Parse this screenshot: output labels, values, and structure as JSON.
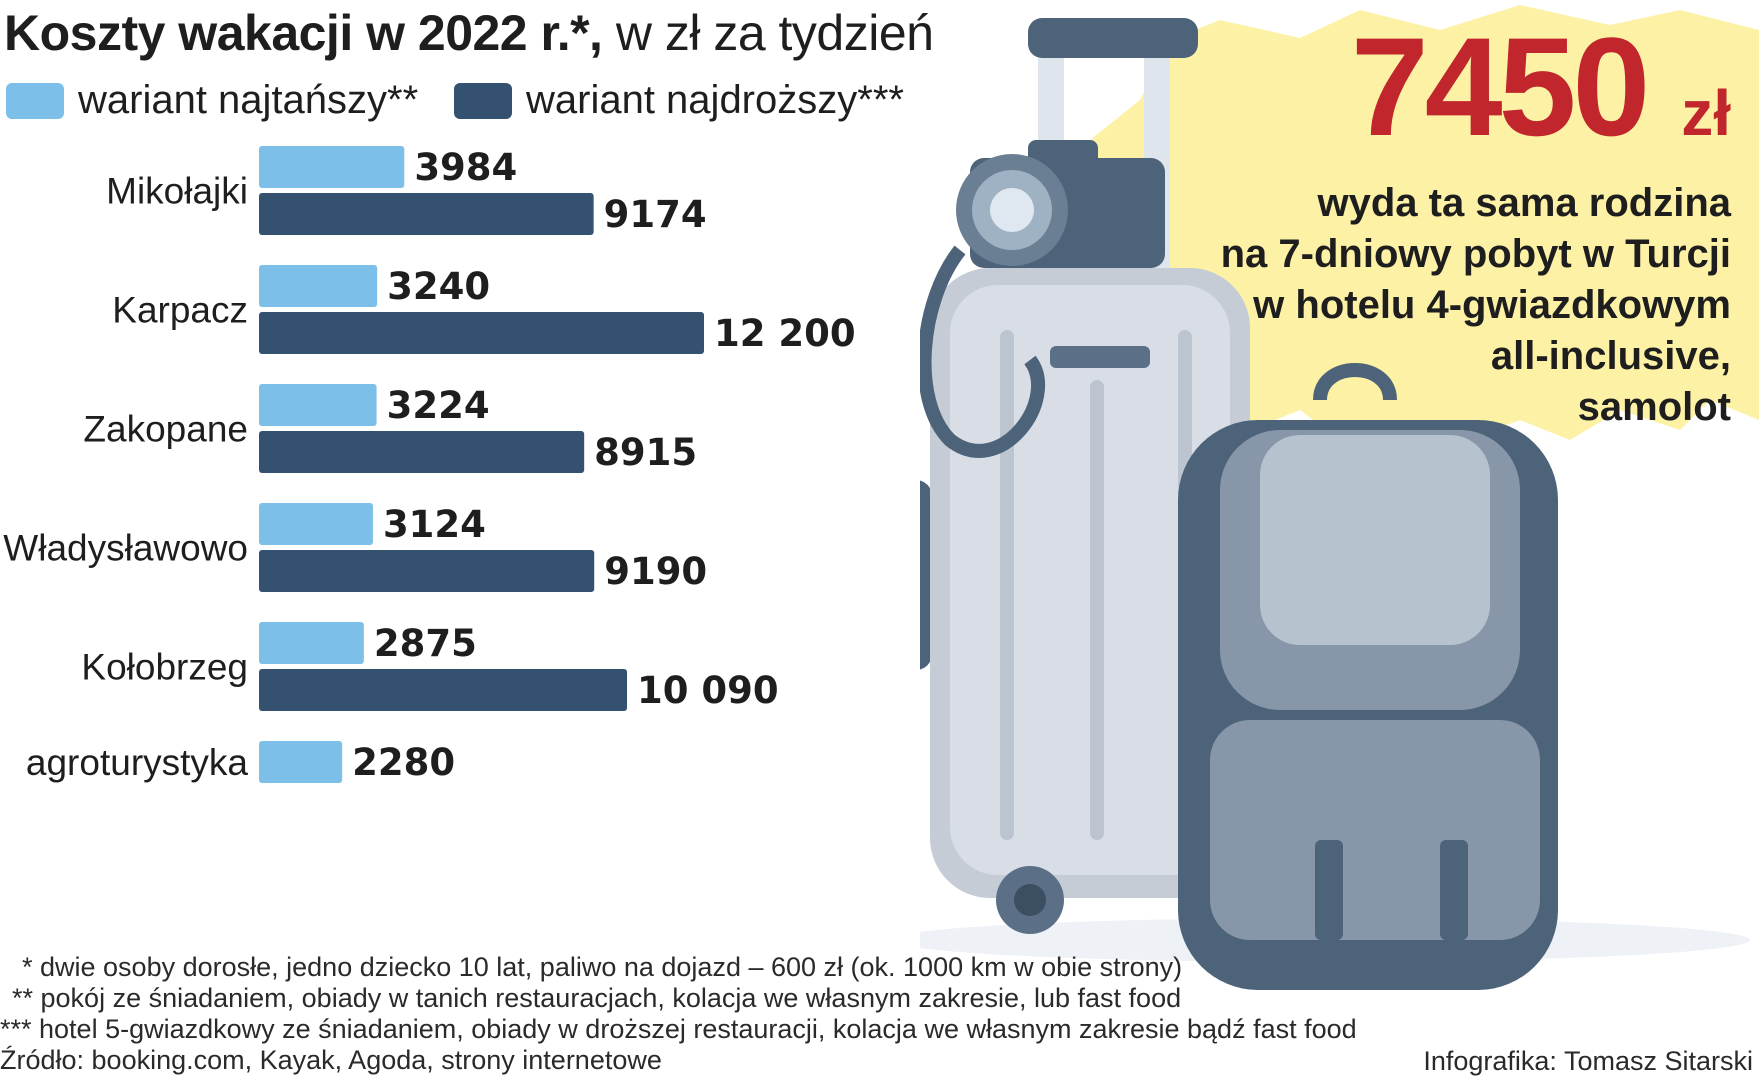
{
  "title": {
    "bold": "Koszty wakacji w 2022 r.*,",
    "rest": " w zł za tydzień"
  },
  "colors": {
    "cheap": "#7cc0ea",
    "expensive": "#34526f",
    "highlight": "#fdf1a6",
    "accent": "#c0262b"
  },
  "chart_data": {
    "type": "bar",
    "orientation": "horizontal",
    "categories": [
      "Mikołajki",
      "Karpacz",
      "Zakopane",
      "Władysławowo",
      "Kołobrzeg",
      "agroturystyka"
    ],
    "series": [
      {
        "name": "wariant najtańszy**",
        "values": [
          3984,
          3240,
          3224,
          3124,
          2875,
          2280
        ],
        "labels": [
          "3984",
          "3240",
          "3224",
          "3124",
          "2875",
          "2280"
        ]
      },
      {
        "name": "wariant najdroższy***",
        "values": [
          9174,
          12200,
          8915,
          9190,
          10090,
          null
        ],
        "labels": [
          "9174",
          "12 200",
          "8915",
          "9190",
          "10 090",
          ""
        ]
      }
    ],
    "title": "Koszty wakacji w 2022 r.*, w zł za tydzień",
    "xlabel": "",
    "ylabel": "",
    "legend": "top-left",
    "grid": false
  },
  "callout": {
    "value": "7450",
    "unit": "zł",
    "lines": [
      "wyda ta sama rodzina",
      "na 7-dniowy pobyt w Turcji",
      "w hotelu 4-gwiazdkowym",
      "all-inclusive,",
      "samolot"
    ]
  },
  "footnotes": [
    "* dwie osoby dorosłe, jedno dziecko 10 lat, paliwo na dojazd – 600 zł (ok. 1000 km w obie strony)",
    "** pokój ze śniadaniem, obiady w tanich restauracjach, kolacja we własnym zakresie, lub fast food",
    "*** hotel 5-gwiazdkowy ze śniadaniem, obiady w droższej restauracji, kolacja we własnym zakresie bądź fast food",
    "Źródło: booking.com, Kayak, Agoda, strony internetowe"
  ],
  "credit": "Infografika: Tomasz Sitarski",
  "illustration": {
    "icons": [
      "suitcase-icon",
      "backpack-icon",
      "camera-icon"
    ]
  }
}
